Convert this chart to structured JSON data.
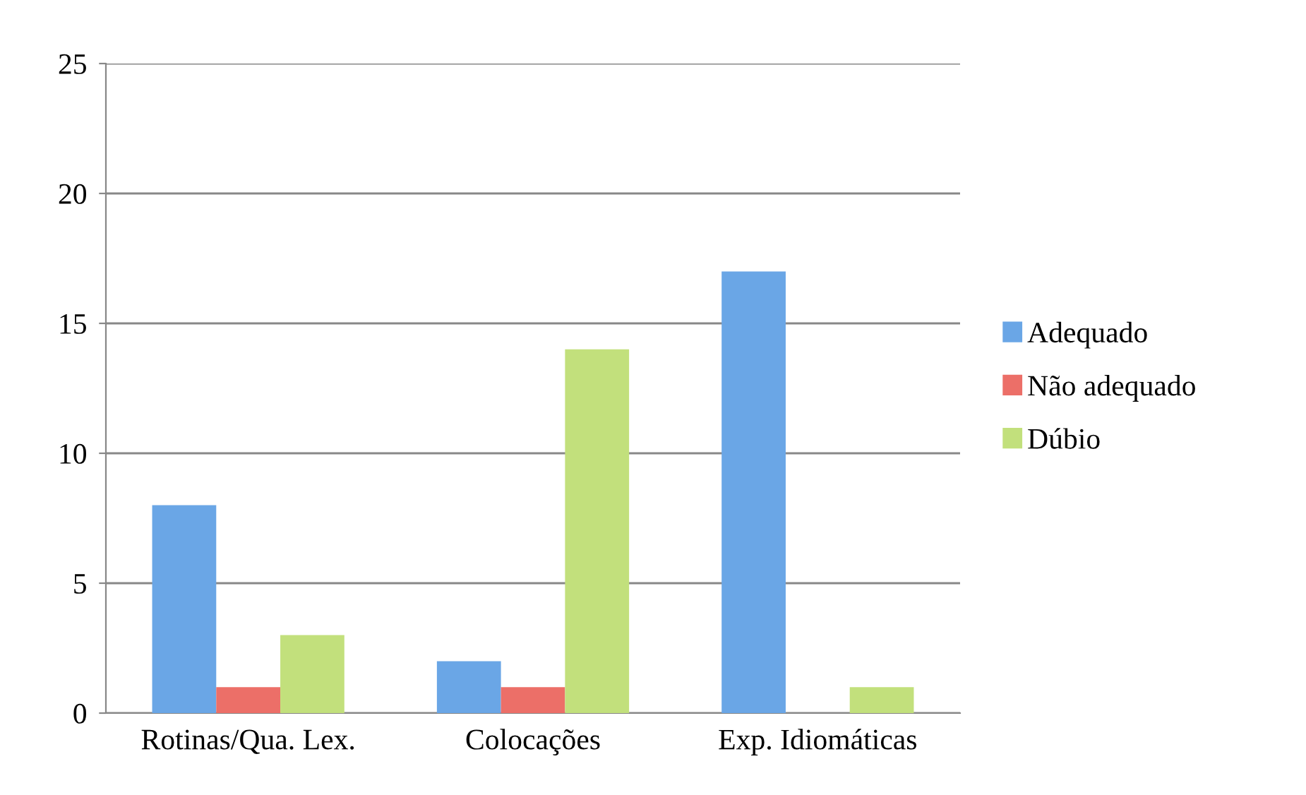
{
  "chart_data": {
    "type": "bar",
    "categories": [
      "Rotinas/Qua. Lex.",
      "Colocações",
      "Exp. Idiomáticas"
    ],
    "series": [
      {
        "name": "Adequado",
        "color": "#6aa6e6",
        "values": [
          8,
          2,
          17
        ]
      },
      {
        "name": "Não adequado",
        "color": "#ec6f68",
        "values": [
          1,
          1,
          0
        ]
      },
      {
        "name": "Dúbio",
        "color": "#c2e07c",
        "values": [
          3,
          14,
          1
        ]
      }
    ],
    "ylim": [
      0,
      25
    ],
    "yticks": [
      0,
      5,
      10,
      15,
      20,
      25
    ],
    "grid": "y",
    "legend": "right"
  }
}
